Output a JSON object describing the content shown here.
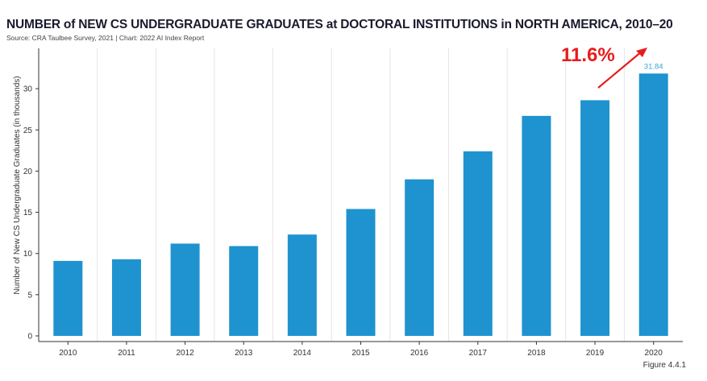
{
  "title": "NUMBER of NEW CS UNDERGRADUATE GRADUATES at DOCTORAL INSTITUTIONS in NORTH AMERICA, 2010–20",
  "source": "Source: CRA Taulbee Survey, 2021 | Chart: 2022 AI Index Report",
  "figure_label": "Figure 4.4.1",
  "annotation": {
    "text": "11.6%",
    "color": "#e81c1c"
  },
  "colors": {
    "bar": "#1f93cf",
    "grid": "#e4e4e4",
    "axis": "#333333",
    "data_label": "#3aa6d8"
  },
  "chart_data": {
    "type": "bar",
    "categories": [
      "2010",
      "2011",
      "2012",
      "2013",
      "2014",
      "2015",
      "2016",
      "2017",
      "2018",
      "2019",
      "2020"
    ],
    "values": [
      9.1,
      9.3,
      11.2,
      10.9,
      12.3,
      15.4,
      19.0,
      22.4,
      26.7,
      28.6,
      31.84
    ],
    "data_labels": [
      {
        "category": "2020",
        "text": "31.84"
      }
    ],
    "ylabel": "Number of New CS Undergraduate Graduates (in thousands)",
    "ylim": [
      0,
      35
    ],
    "yticks": [
      0,
      5,
      10,
      15,
      20,
      25,
      30
    ],
    "grid": "vertical"
  }
}
